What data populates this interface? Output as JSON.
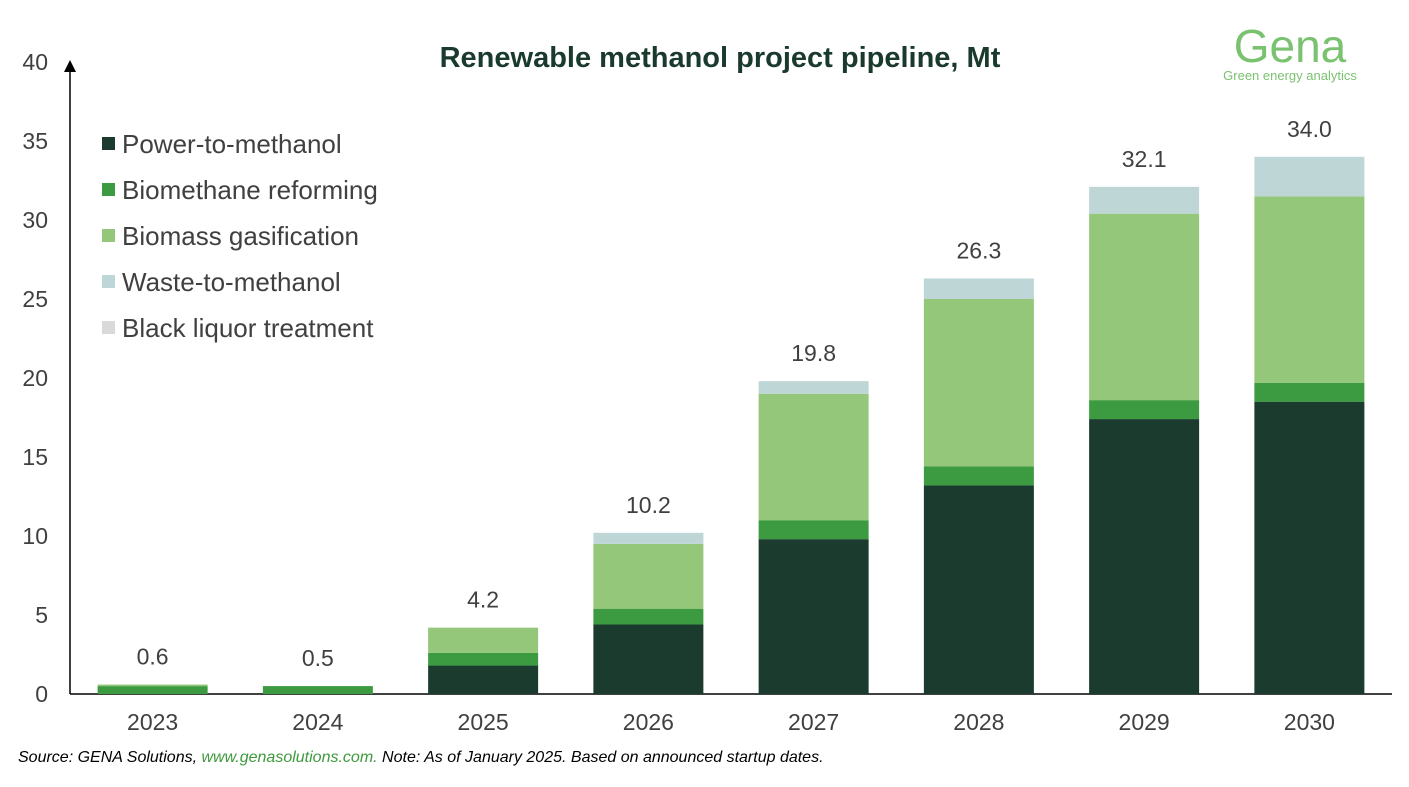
{
  "logo": {
    "word": "Gena",
    "tagline": "Green energy analytics"
  },
  "footer": {
    "source_prefix": "Source: GENA Solutions, ",
    "link": "www.genasolutions.com.",
    "note": " Note: As of January 2025. Based on announced startup dates."
  },
  "colors": {
    "power": "#1b3b2e",
    "biomethane": "#3c9b41",
    "gasification": "#95c77b",
    "waste": "#bfd6d6",
    "black_liquor": "#d9d9d9"
  },
  "chart_data": {
    "type": "bar",
    "stacked": true,
    "title": "Renewable methanol project pipeline, Mt",
    "xlabel": "",
    "ylabel": "",
    "ylim": [
      0,
      40
    ],
    "yticks": [
      "0",
      "5",
      "10",
      "15",
      "20",
      "25",
      "30",
      "35",
      "40"
    ],
    "categories": [
      "2023",
      "2024",
      "2025",
      "2026",
      "2027",
      "2028",
      "2029",
      "2030"
    ],
    "series": [
      {
        "name": "Power-to-methanol",
        "color_key": "power",
        "values": [
          0.0,
          0.0,
          1.8,
          4.4,
          9.8,
          13.2,
          17.4,
          18.5
        ]
      },
      {
        "name": "Biomethane reforming",
        "color_key": "biomethane",
        "values": [
          0.5,
          0.5,
          0.8,
          1.0,
          1.2,
          1.2,
          1.2,
          1.2
        ]
      },
      {
        "name": "Biomass gasification",
        "color_key": "gasification",
        "values": [
          0.1,
          0.0,
          1.6,
          4.1,
          8.0,
          10.6,
          11.8,
          11.8
        ]
      },
      {
        "name": "Waste-to-methanol",
        "color_key": "waste",
        "values": [
          0.0,
          0.0,
          0.0,
          0.7,
          0.8,
          1.3,
          1.7,
          2.5
        ]
      },
      {
        "name": "Black liquor treatment",
        "color_key": "black_liquor",
        "values": [
          0.0,
          0.0,
          0.0,
          0.0,
          0.0,
          0.0,
          0.0,
          0.0
        ]
      }
    ],
    "totals": [
      "0.6",
      "0.5",
      "4.2",
      "10.2",
      "19.8",
      "26.3",
      "32.1",
      "34.0"
    ],
    "grid": false,
    "legend_position": "top-left"
  }
}
